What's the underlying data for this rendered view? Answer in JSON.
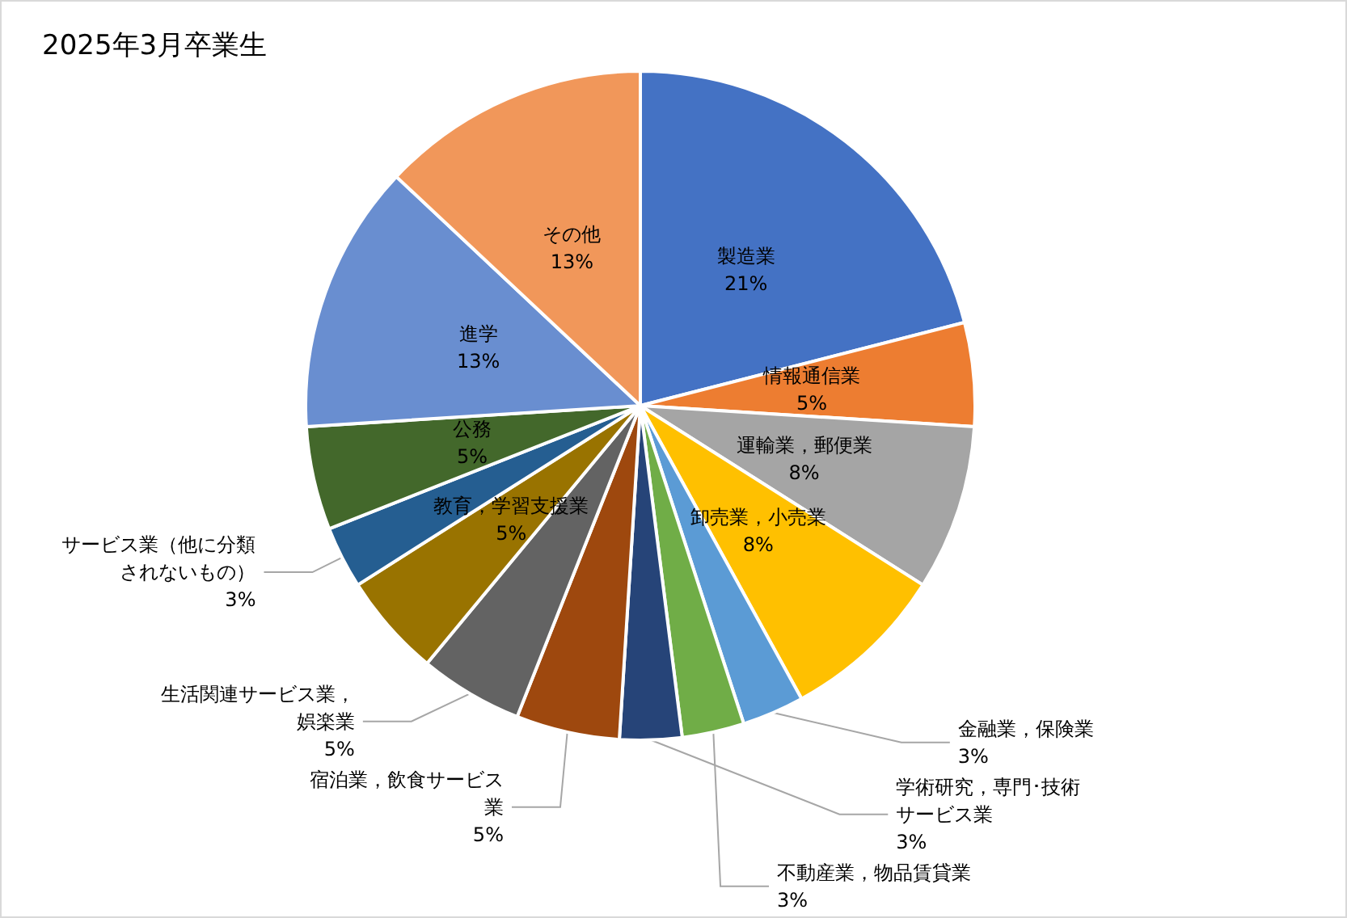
{
  "chart_data": {
    "type": "pie",
    "title": "2025年3月卒業生",
    "categories": [
      "製造業",
      "情報通信業",
      "運輸業，郵便業",
      "卸売業，小売業",
      "金融業，保険業",
      "不動産業，物品賃貸業",
      "学術研究，専門･技術サービス業",
      "宿泊業，飲食サービス業",
      "生活関連サービス業，娯楽業",
      "教育，学習支援業",
      "サービス業（他に分類されないもの）",
      "公務",
      "進学",
      "その他"
    ],
    "values": [
      21,
      5,
      8,
      8,
      3,
      3,
      3,
      5,
      5,
      5,
      3,
      5,
      13,
      13
    ],
    "colors": [
      "#4472c4",
      "#ed7d31",
      "#a5a5a5",
      "#ffc000",
      "#5b9bd5",
      "#70ad47",
      "#264478",
      "#9e480e",
      "#636363",
      "#997300",
      "#255e91",
      "#43682b",
      "#698ed0",
      "#f1975a"
    ],
    "value_labels": [
      "21%",
      "5%",
      "8%",
      "8%",
      "3%",
      "3%",
      "3%",
      "5%",
      "5%",
      "5%",
      "3%",
      "5%",
      "13%",
      "13%"
    ],
    "legend": false
  }
}
